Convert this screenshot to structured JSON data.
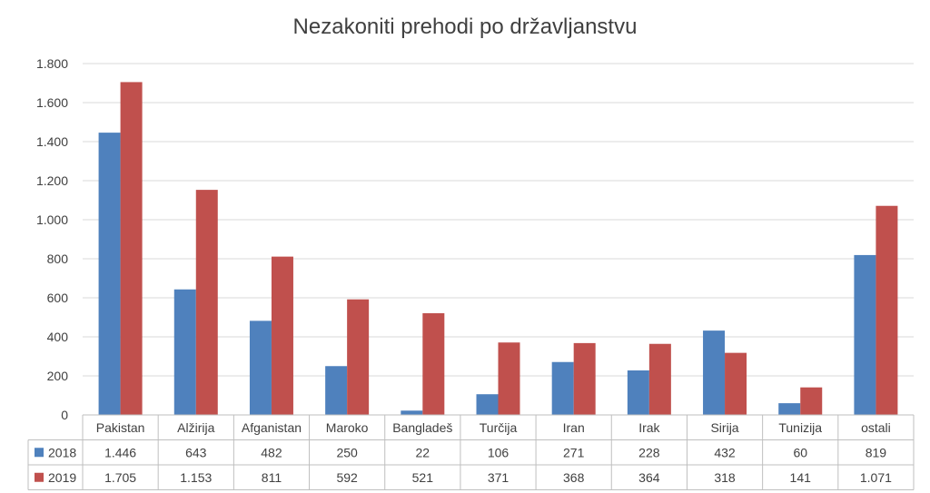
{
  "chart_data": {
    "type": "bar",
    "title": "Nezakoniti prehodi po državljanstvu",
    "categories": [
      "Pakistan",
      "Alžirija",
      "Afganistan",
      "Maroko",
      "Bangladeš",
      "Turčija",
      "Iran",
      "Irak",
      "Sirija",
      "Tunizija",
      "ostali"
    ],
    "series": [
      {
        "name": "2018",
        "color": "#4f81bd",
        "values": [
          1446,
          643,
          482,
          250,
          22,
          106,
          271,
          228,
          432,
          60,
          819
        ],
        "labels": [
          "1.446",
          "643",
          "482",
          "250",
          "22",
          "106",
          "271",
          "228",
          "432",
          "60",
          "819"
        ]
      },
      {
        "name": "2019",
        "color": "#c0504d",
        "values": [
          1705,
          1153,
          811,
          592,
          521,
          371,
          368,
          364,
          318,
          141,
          1071
        ],
        "labels": [
          "1.705",
          "1.153",
          "811",
          "592",
          "521",
          "371",
          "368",
          "364",
          "318",
          "141",
          "1.071"
        ]
      }
    ],
    "ylim": [
      0,
      1800
    ],
    "yticks": [
      0,
      200,
      400,
      600,
      800,
      1000,
      1200,
      1400,
      1600,
      1800
    ],
    "ytick_labels": [
      "0",
      "200",
      "400",
      "600",
      "800",
      "1.000",
      "1.200",
      "1.400",
      "1.600",
      "1.800"
    ],
    "grid": true,
    "data_table": true
  }
}
